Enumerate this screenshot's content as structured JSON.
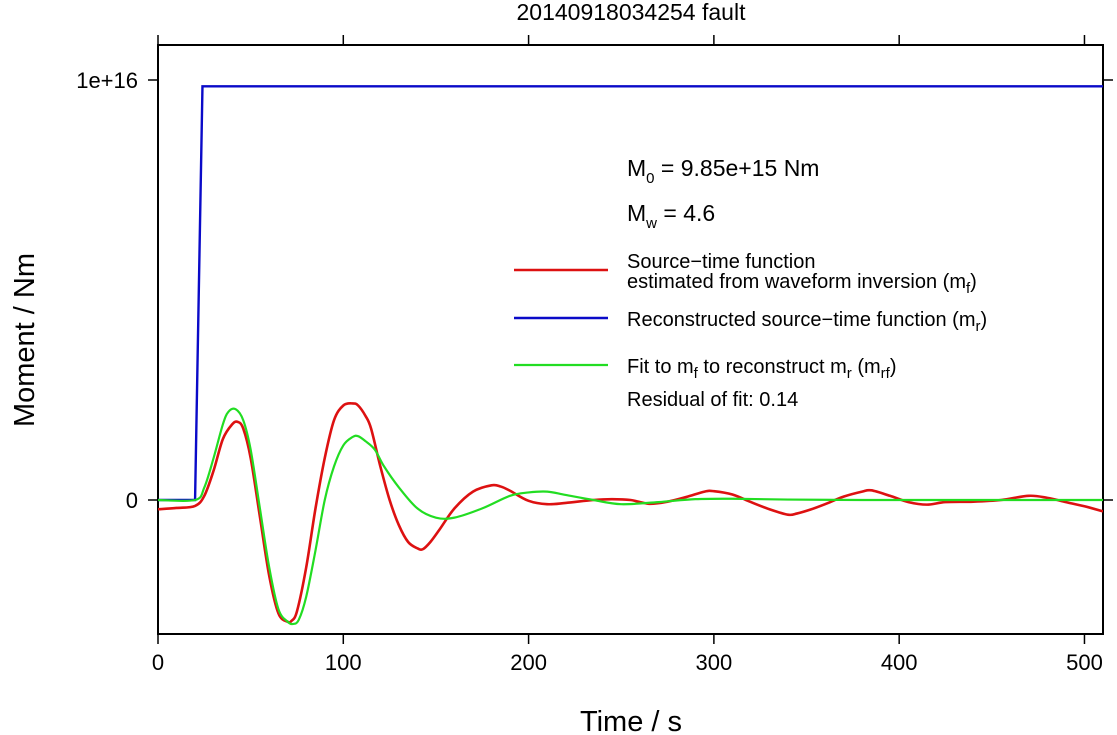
{
  "chart_data": {
    "type": "line",
    "title": "20140918034254 fault",
    "xlabel": "Time / s",
    "ylabel": "Moment / Nm",
    "xlim": [
      0,
      510
    ],
    "ylim": [
      -3200000000000000.0,
      1.1e+16
    ],
    "x_ticks": [
      0,
      100,
      200,
      300,
      400,
      500
    ],
    "x_tick_labels": [
      "0",
      "100",
      "200",
      "300",
      "400",
      "500"
    ],
    "y_ticks": [
      0,
      1e+16
    ],
    "y_tick_labels": [
      "0",
      "1e+16"
    ],
    "grid": false,
    "legend_position": "right",
    "annotations": {
      "m0_prefix": "M",
      "m0_sub": "0",
      "m0_value": " = 9.85e+15 Nm",
      "mw_prefix": "M",
      "mw_sub": "w",
      "mw_value": " = 4.6",
      "residual": "Residual of fit: 0.14"
    },
    "legend": {
      "red_line1": "Source−time function",
      "red_line2a": "estimated from waveform inversion (m",
      "red_line2_sub": "f",
      "red_line2b": ")",
      "blue_a": "Reconstructed source−time function (m",
      "blue_sub": "r",
      "blue_b": ")",
      "green_a": "Fit to m",
      "green_sub1": "f",
      "green_b": " to reconstruct m",
      "green_sub2": "r",
      "green_c": " (m",
      "green_sub3": "rf",
      "green_d": ")"
    },
    "colors": {
      "red": "#dd1111",
      "blue": "#0a0ac8",
      "green": "#22dd22"
    },
    "series": [
      {
        "name": "Source−time function estimated from waveform inversion (mf)",
        "color": "#dd1111",
        "x": [
          0,
          10,
          20,
          25,
          30,
          35,
          40,
          43,
          46,
          50,
          55,
          60,
          65,
          70,
          72,
          75,
          80,
          85,
          90,
          95,
          100,
          105,
          108,
          112,
          115,
          120,
          125,
          130,
          135,
          140,
          143,
          147,
          152,
          160,
          170,
          180,
          185,
          190,
          200,
          210,
          220,
          235,
          245,
          255,
          265,
          275,
          285,
          295,
          300,
          310,
          320,
          330,
          340,
          345,
          352,
          360,
          370,
          380,
          385,
          395,
          405,
          415,
          425,
          440,
          455,
          470,
          480,
          490,
          500,
          510
        ],
        "y": [
          -220000000000000.0,
          -190000000000000.0,
          -140000000000000.0,
          100000000000000.0,
          700000000000000.0,
          1450000000000000.0,
          1800000000000000.0,
          1860000000000000.0,
          1700000000000000.0,
          1000000000000000.0,
          -400000000000000.0,
          -1800000000000000.0,
          -2700000000000000.0,
          -2900000000000000.0,
          -2880000000000000.0,
          -2650000000000000.0,
          -1600000000000000.0,
          -200000000000000.0,
          1000000000000000.0,
          1900000000000000.0,
          2250000000000000.0,
          2300000000000000.0,
          2250000000000000.0,
          2000000000000000.0,
          1700000000000000.0,
          800000000000000.0,
          0.0,
          -600000000000000.0,
          -1000000000000000.0,
          -1150000000000000.0,
          -1170000000000000.0,
          -1000000000000000.0,
          -700000000000000.0,
          -200000000000000.0,
          200000000000000.0,
          350000000000000.0,
          320000000000000.0,
          220000000000000.0,
          -20000000000000.0,
          -100000000000000.0,
          -70000000000000.0,
          0.0,
          20000000000000.0,
          0.0,
          -90000000000000.0,
          -40000000000000.0,
          70000000000000.0,
          200000000000000.0,
          210000000000000.0,
          130000000000000.0,
          -50000000000000.0,
          -220000000000000.0,
          -350000000000000.0,
          -320000000000000.0,
          -230000000000000.0,
          -100000000000000.0,
          80000000000000.0,
          200000000000000.0,
          230000000000000.0,
          100000000000000.0,
          -50000000000000.0,
          -110000000000000.0,
          -50000000000000.0,
          -40000000000000.0,
          0.0,
          100000000000000.0,
          50000000000000.0,
          -50000000000000.0,
          -150000000000000.0,
          -270000000000000.0
        ]
      },
      {
        "name": "Reconstructed source−time function (mr)",
        "color": "#0a0ac8",
        "x": [
          0,
          20,
          24,
          510
        ],
        "y": [
          0,
          0,
          9850000000000000.0,
          9850000000000000.0
        ]
      },
      {
        "name": "Fit to mf to reconstruct mr (mrf)",
        "color": "#22dd22",
        "x": [
          0,
          20,
          25,
          30,
          35,
          38,
          42,
          46,
          50,
          55,
          60,
          65,
          70,
          73,
          76,
          80,
          85,
          90,
          95,
          100,
          105,
          108,
          112,
          117,
          122,
          130,
          140,
          150,
          160,
          175,
          190,
          200,
          210,
          220,
          235,
          250,
          270,
          290,
          310,
          340,
          380,
          420,
          470,
          510
        ],
        "y": [
          0,
          0,
          300000000000000.0,
          1000000000000000.0,
          1800000000000000.0,
          2100000000000000.0,
          2160000000000000.0,
          1900000000000000.0,
          1200000000000000.0,
          -200000000000000.0,
          -1600000000000000.0,
          -2600000000000000.0,
          -2900000000000000.0,
          -2950000000000000.0,
          -2850000000000000.0,
          -2300000000000000.0,
          -1200000000000000.0,
          0.0,
          800000000000000.0,
          1300000000000000.0,
          1500000000000000.0,
          1520000000000000.0,
          1400000000000000.0,
          1200000000000000.0,
          800000000000000.0,
          300000000000000.0,
          -200000000000000.0,
          -420000000000000.0,
          -420000000000000.0,
          -200000000000000.0,
          100000000000000.0,
          180000000000000.0,
          200000000000000.0,
          120000000000000.0,
          0.0,
          -100000000000000.0,
          -50000000000000.0,
          20000000000000.0,
          30000000000000.0,
          10000000000000.0,
          0.0,
          0.0,
          0.0,
          0.0
        ]
      }
    ]
  }
}
